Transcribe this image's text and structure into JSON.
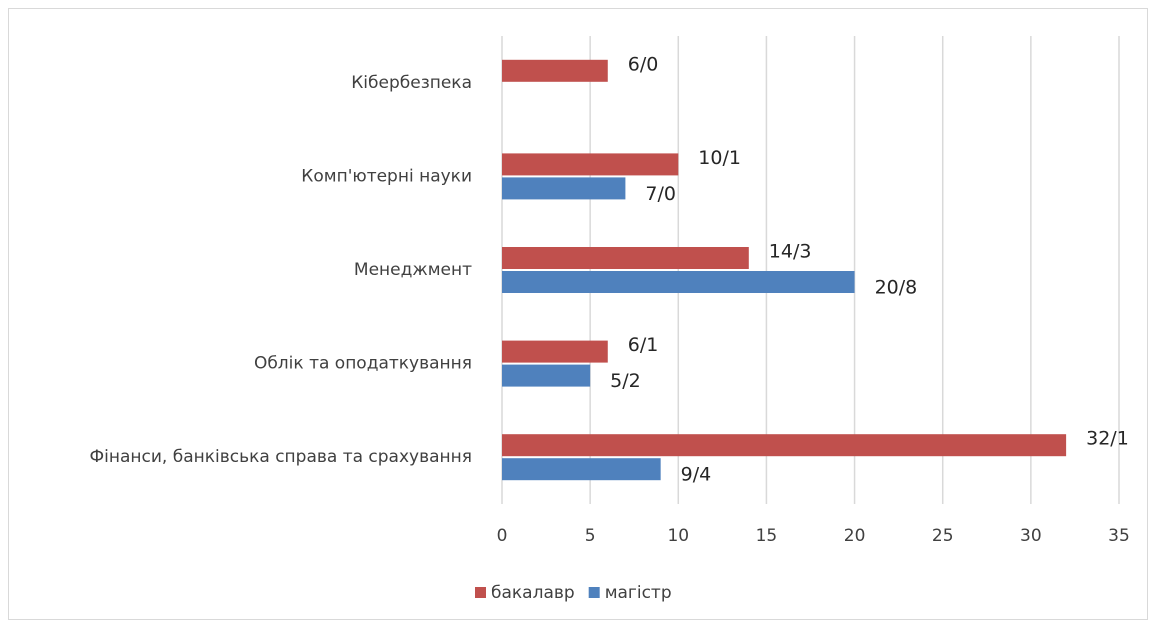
{
  "chart_data": {
    "type": "bar",
    "orientation": "horizontal",
    "categories": [
      "Кібербезпека",
      "Комп'ютерні науки",
      "Менеджмент",
      "Облік та оподаткування",
      "Фінанси, банківська справа та срахування"
    ],
    "series": [
      {
        "name": "бакалавр",
        "color": "#c0504d",
        "values": [
          6,
          10,
          14,
          6,
          32
        ],
        "value_labels": [
          "6/0",
          "10/1",
          "14/3",
          "6/1",
          "32/1"
        ]
      },
      {
        "name": "магістр",
        "color": "#4f81bd",
        "values": [
          null,
          7,
          20,
          5,
          9
        ],
        "value_labels": [
          null,
          "7/0",
          "20/8",
          "5/2",
          "9/4"
        ]
      }
    ],
    "xlim": [
      0,
      35
    ],
    "xticks": [
      0,
      5,
      10,
      15,
      20,
      25,
      30,
      35
    ],
    "grid": true,
    "legend": "bottom"
  }
}
